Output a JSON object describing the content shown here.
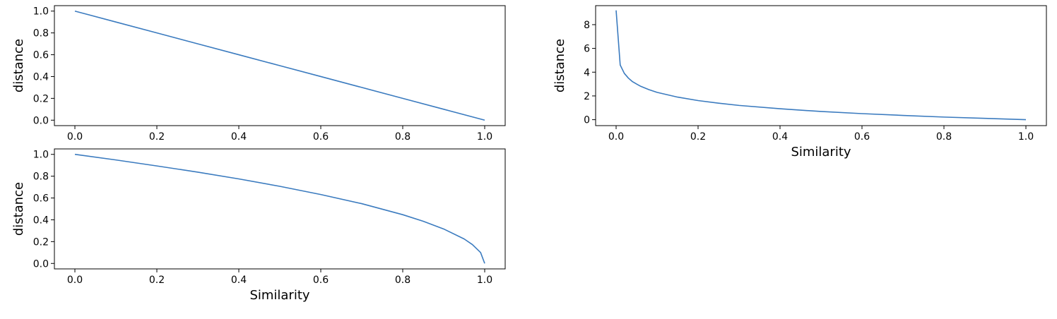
{
  "colors": {
    "series": "#3b7bbf",
    "frame": "#000000",
    "background": "#ffffff"
  },
  "chart_data": [
    {
      "id": "top-left",
      "type": "line",
      "xlabel": "",
      "ylabel": "distance",
      "xlim": [
        -0.05,
        1.05
      ],
      "ylim": [
        -0.05,
        1.05
      ],
      "xticks": [
        0.0,
        0.2,
        0.4,
        0.6,
        0.8,
        1.0
      ],
      "xtick_labels": [
        "0.0",
        "0.2",
        "0.4",
        "0.6",
        "0.8",
        "1.0"
      ],
      "yticks": [
        0.0,
        0.2,
        0.4,
        0.6,
        0.8,
        1.0
      ],
      "ytick_labels": [
        "0.0",
        "0.2",
        "0.4",
        "0.6",
        "0.8",
        "1.0"
      ],
      "grid": false,
      "series": [
        {
          "x": [
            0.0,
            0.1,
            0.2,
            0.3,
            0.4,
            0.5,
            0.6,
            0.7,
            0.8,
            0.9,
            1.0
          ],
          "y": [
            1.0,
            0.9,
            0.8,
            0.7,
            0.6,
            0.5,
            0.4,
            0.3,
            0.2,
            0.1,
            0.0
          ]
        }
      ]
    },
    {
      "id": "top-right",
      "type": "line",
      "xlabel": "Similarity",
      "ylabel": "distance",
      "xlim": [
        -0.05,
        1.05
      ],
      "ylim": [
        -0.5,
        9.6
      ],
      "xticks": [
        0.0,
        0.2,
        0.4,
        0.6,
        0.8,
        1.0
      ],
      "xtick_labels": [
        "0.0",
        "0.2",
        "0.4",
        "0.6",
        "0.8",
        "1.0"
      ],
      "yticks": [
        0,
        2,
        4,
        6,
        8
      ],
      "ytick_labels": [
        "0",
        "2",
        "4",
        "6",
        "8"
      ],
      "grid": false,
      "series": [
        {
          "x": [
            0.0,
            0.01,
            0.02,
            0.03,
            0.04,
            0.05,
            0.06,
            0.08,
            0.1,
            0.15,
            0.2,
            0.25,
            0.3,
            0.4,
            0.5,
            0.6,
            0.7,
            0.8,
            0.9,
            1.0
          ],
          "y": [
            9.2,
            4.6,
            3.9,
            3.5,
            3.2,
            3.0,
            2.81,
            2.53,
            2.3,
            1.9,
            1.61,
            1.39,
            1.2,
            0.92,
            0.69,
            0.51,
            0.36,
            0.22,
            0.11,
            0.0
          ]
        }
      ]
    },
    {
      "id": "bottom-left",
      "type": "line",
      "xlabel": "Similarity",
      "ylabel": "distance",
      "xlim": [
        -0.05,
        1.05
      ],
      "ylim": [
        -0.05,
        1.05
      ],
      "xticks": [
        0.0,
        0.2,
        0.4,
        0.6,
        0.8,
        1.0
      ],
      "xtick_labels": [
        "0.0",
        "0.2",
        "0.4",
        "0.6",
        "0.8",
        "1.0"
      ],
      "yticks": [
        0.0,
        0.2,
        0.4,
        0.6,
        0.8,
        1.0
      ],
      "ytick_labels": [
        "0.0",
        "0.2",
        "0.4",
        "0.6",
        "0.8",
        "1.0"
      ],
      "grid": false,
      "series": [
        {
          "x": [
            0.0,
            0.1,
            0.2,
            0.3,
            0.4,
            0.5,
            0.6,
            0.7,
            0.8,
            0.85,
            0.9,
            0.95,
            0.97,
            0.99,
            1.0
          ],
          "y": [
            1.0,
            0.949,
            0.894,
            0.837,
            0.775,
            0.707,
            0.632,
            0.548,
            0.447,
            0.387,
            0.316,
            0.224,
            0.173,
            0.1,
            0.0
          ]
        }
      ]
    }
  ]
}
